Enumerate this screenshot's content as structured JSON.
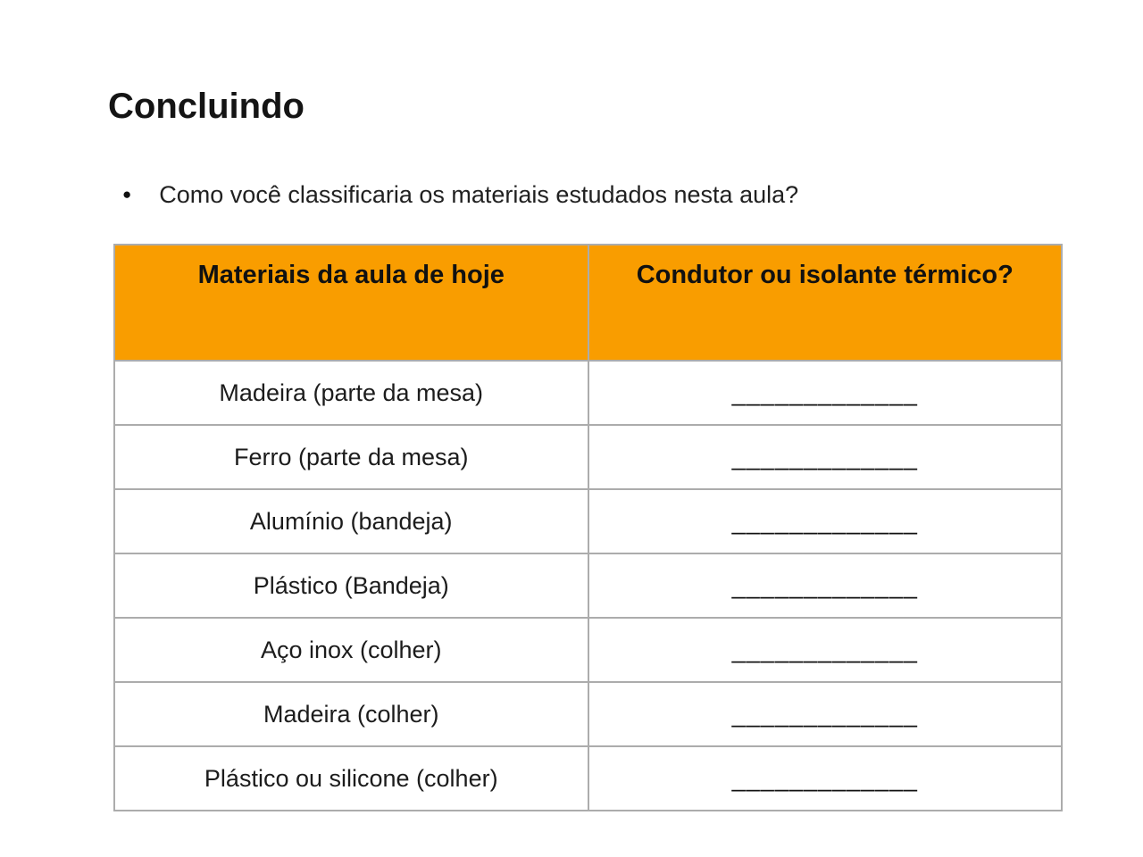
{
  "slide": {
    "title": "Concluindo",
    "bullet": {
      "marker": "●",
      "text": "Como você classificaria os materiais estudados nesta aula?"
    },
    "table": {
      "headers": {
        "materials": "Materiais da aula de hoje",
        "conductor": "Condutor ou isolante térmico?"
      },
      "rows": [
        "Madeira (parte da mesa)",
        "Ferro (parte da mesa)",
        "Alumínio (bandeja)",
        "Plástico (Bandeja)",
        "Aço inox (colher)",
        "Madeira (colher)",
        "Plástico ou silicone (colher)"
      ],
      "blank": "_____________",
      "colors": {
        "header_bg": "#f99d00",
        "border": "#acacac"
      }
    }
  }
}
